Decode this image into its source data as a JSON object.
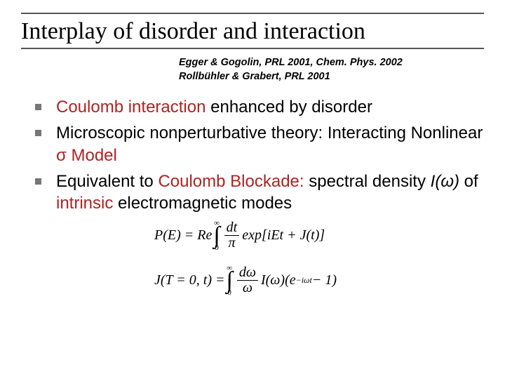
{
  "title": "Interplay of disorder and interaction",
  "refs": {
    "line1": "Egger & Gogolin, PRL 2001, Chem. Phys. 2002",
    "line2": "Rollbühler & Grabert, PRL 2001"
  },
  "bullets": {
    "b1_a": "Coulomb interaction",
    "b1_b": " enhanced by disorder",
    "b2_a": "Microscopic nonperturbative theory: Interacting Nonlinear ",
    "b2_b": "σ Model",
    "b3_a": "Equivalent to ",
    "b3_b": "Coulomb Blockade:",
    "b3_c": " spectral density ",
    "b3_d": "I(ω)",
    "b3_e": " of ",
    "b3_f": "intrinsic",
    "b3_g": " electromagnetic modes"
  },
  "formulas": {
    "f1_left": "P(E) = Re",
    "f1_ul": "∞",
    "f1_int": "∫",
    "f1_ll": "0",
    "f1_num": "dt",
    "f1_den": "π",
    "f1_right": "exp[iEt + J(t)]",
    "f2_left": "J(T = 0, t) =",
    "f2_ul": "∞",
    "f2_int": "∫",
    "f2_ll": "0",
    "f2_num": "dω",
    "f2_den": "ω",
    "f2_mid": "I(ω)",
    "f2_exp_a": "(e",
    "f2_exp_sup": "−iωt",
    "f2_exp_b": " − 1)"
  },
  "colors": {
    "highlight": "#b22222",
    "rule": "#555555",
    "bullet_square": "#777777",
    "background": "#ffffff",
    "text": "#000000"
  }
}
